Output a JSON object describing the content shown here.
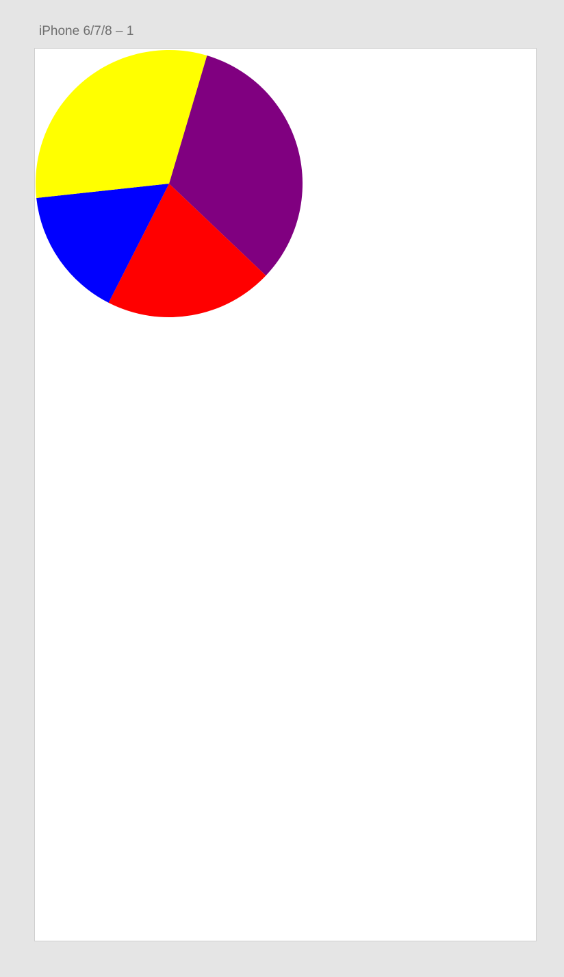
{
  "artboard": {
    "title": "iPhone 6/7/8 – 1"
  },
  "chart_data": {
    "type": "pie",
    "slices": [
      {
        "value": 32.5,
        "color": "#800080"
      },
      {
        "value": 20.4,
        "color": "#ff0000"
      },
      {
        "value": 15.8,
        "color": "#0000ff"
      },
      {
        "value": 31.3,
        "color": "#ffff00"
      }
    ]
  }
}
